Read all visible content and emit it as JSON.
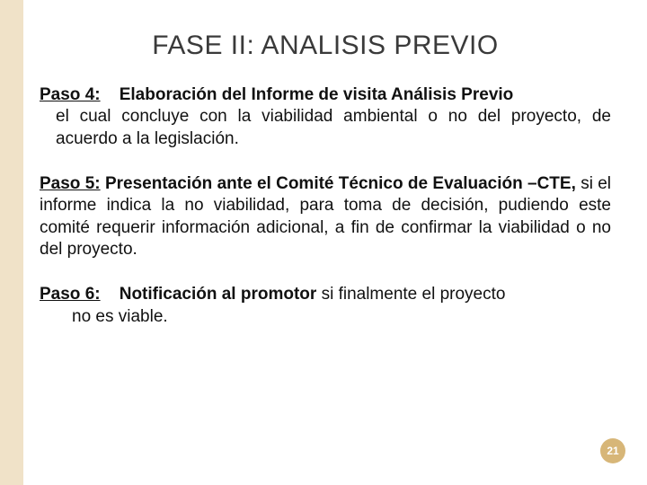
{
  "colors": {
    "sidebar_accent": "#f0e2c8",
    "background": "#ffffff",
    "title_color": "#3a3a3a",
    "body_color": "#111111",
    "page_badge_bg": "#d7b678",
    "page_badge_fg": "#ffffff"
  },
  "typography": {
    "title_fontsize_pt": 22,
    "body_fontsize_pt": 14,
    "title_weight": "400",
    "body_weight": "400",
    "bold_weight": "700"
  },
  "title": "FASE II: ANALISIS PREVIO",
  "steps": [
    {
      "label": "Paso 4:",
      "headline": "Elaboración del Informe de visita Análisis Previo",
      "body": "el cual concluye con la viabilidad ambiental o no  del proyecto, de acuerdo a la legislación."
    },
    {
      "label": "Paso 5:",
      "headline": "Presentación ante el Comité Técnico de Evaluación –CTE,",
      "body": "si el informe indica la no viabilidad, para toma de decisión, pudiendo este comité requerir información adicional, a fin de confirmar la viabilidad o no del proyecto."
    },
    {
      "label": "Paso 6:",
      "headline": "Notificación al promotor",
      "body_inline": "si finalmente el proyecto",
      "body_line2": "no es viable."
    }
  ],
  "page_number": "21"
}
